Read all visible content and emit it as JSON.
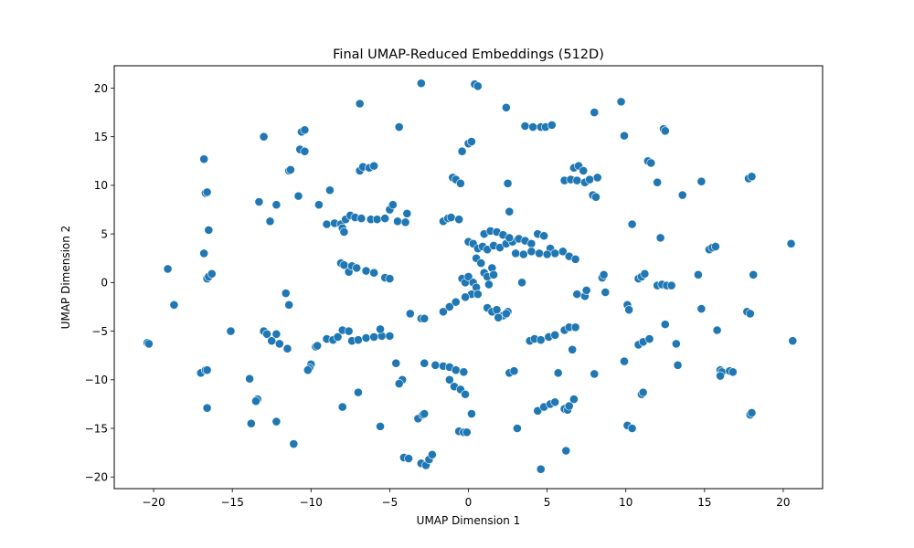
{
  "chart_data": {
    "type": "scatter",
    "title": "Final UMAP-Reduced Embeddings (512D)",
    "xlabel": "UMAP Dimension 1",
    "ylabel": "UMAP Dimension 2",
    "xlim": [
      -22.5,
      22.5
    ],
    "ylim": [
      -21.2,
      22.3
    ],
    "xticks": [
      -20,
      -15,
      -10,
      -5,
      0,
      5,
      10,
      15,
      20
    ],
    "yticks": [
      -20,
      -15,
      -10,
      -5,
      0,
      5,
      10,
      15,
      20
    ],
    "grid": false,
    "legend": "none",
    "marker_color": "#1f77b4",
    "marker_edge_color": "#ffffff",
    "series": [
      {
        "points": [
          [
            -20.4,
            -6.2
          ],
          [
            -20.3,
            -6.3
          ],
          [
            -19.1,
            1.4
          ],
          [
            -18.7,
            -2.3
          ],
          [
            -16.8,
            12.7
          ],
          [
            -16.7,
            9.2
          ],
          [
            -16.6,
            9.3
          ],
          [
            -16.5,
            5.4
          ],
          [
            -16.8,
            3.0
          ],
          [
            -16.6,
            0.4
          ],
          [
            -16.5,
            0.6
          ],
          [
            -16.3,
            0.9
          ],
          [
            -17.0,
            -9.3
          ],
          [
            -16.7,
            -9.0
          ],
          [
            -16.6,
            -9.0
          ],
          [
            -16.6,
            -12.9
          ],
          [
            -15.1,
            -5.0
          ],
          [
            -13.9,
            -9.9
          ],
          [
            -13.4,
            -12.0
          ],
          [
            -13.5,
            -12.2
          ],
          [
            -13.8,
            -14.5
          ],
          [
            -13.0,
            15.0
          ],
          [
            -13.3,
            8.3
          ],
          [
            -12.6,
            6.3
          ],
          [
            -12.2,
            8.0
          ],
          [
            -13.0,
            -5.0
          ],
          [
            -12.8,
            -5.3
          ],
          [
            -12.5,
            -6.0
          ],
          [
            -12.2,
            -5.3
          ],
          [
            -12.0,
            -6.3
          ],
          [
            -11.5,
            -6.8
          ],
          [
            -12.2,
            -14.3
          ],
          [
            -11.4,
            11.5
          ],
          [
            -11.3,
            11.6
          ],
          [
            -11.6,
            -1.1
          ],
          [
            -11.4,
            -2.3
          ],
          [
            -11.1,
            -16.6
          ],
          [
            -10.6,
            15.5
          ],
          [
            -10.4,
            15.7
          ],
          [
            -10.7,
            13.7
          ],
          [
            -10.4,
            13.5
          ],
          [
            -10.8,
            8.9
          ],
          [
            -10.0,
            -8.4
          ],
          [
            -10.1,
            -8.8
          ],
          [
            -10.2,
            -9.0
          ],
          [
            -9.7,
            -6.6
          ],
          [
            -9.6,
            -6.5
          ],
          [
            -9.5,
            8.0
          ],
          [
            -8.8,
            9.5
          ],
          [
            -9.0,
            6.0
          ],
          [
            -8.5,
            6.1
          ],
          [
            -8.1,
            6.0
          ],
          [
            -7.8,
            6.5
          ],
          [
            -7.5,
            6.9
          ],
          [
            -7.2,
            6.7
          ],
          [
            -6.8,
            6.6
          ],
          [
            -6.2,
            6.5
          ],
          [
            -5.8,
            6.5
          ],
          [
            -5.3,
            6.6
          ],
          [
            -5.0,
            7.5
          ],
          [
            -4.8,
            8.0
          ],
          [
            -4.5,
            6.3
          ],
          [
            -4.0,
            6.2
          ],
          [
            -3.9,
            7.1
          ],
          [
            -8.0,
            5.6
          ],
          [
            -7.9,
            5.2
          ],
          [
            -8.1,
            2.0
          ],
          [
            -7.9,
            1.8
          ],
          [
            -7.6,
            1.1
          ],
          [
            -7.4,
            1.7
          ],
          [
            -7.1,
            1.5
          ],
          [
            -6.5,
            1.2
          ],
          [
            -6.0,
            1.0
          ],
          [
            -5.3,
            0.5
          ],
          [
            -5.0,
            0.4
          ],
          [
            -9.0,
            -5.8
          ],
          [
            -8.6,
            -5.9
          ],
          [
            -8.3,
            -5.6
          ],
          [
            -8.0,
            -4.9
          ],
          [
            -7.6,
            -5.0
          ],
          [
            -7.4,
            -6.0
          ],
          [
            -7.0,
            -5.9
          ],
          [
            -6.5,
            -5.7
          ],
          [
            -6.0,
            -5.6
          ],
          [
            -5.5,
            -5.5
          ],
          [
            -5.0,
            -5.5
          ],
          [
            -5.6,
            -4.8
          ],
          [
            -8.0,
            -12.8
          ],
          [
            -7.0,
            -11.3
          ],
          [
            -6.9,
            11.5
          ],
          [
            -6.7,
            11.9
          ],
          [
            -6.3,
            11.8
          ],
          [
            -6.0,
            12.0
          ],
          [
            -6.9,
            18.4
          ],
          [
            -5.6,
            -14.8
          ],
          [
            -4.4,
            16.0
          ],
          [
            -4.6,
            -8.3
          ],
          [
            -4.2,
            -10.0
          ],
          [
            -4.4,
            -10.4
          ],
          [
            -3.7,
            -3.2
          ],
          [
            -3.0,
            -3.7
          ],
          [
            -2.8,
            -3.7
          ],
          [
            -4.1,
            -18.0
          ],
          [
            -3.8,
            -18.1
          ],
          [
            -3.2,
            -14.0
          ],
          [
            -2.9,
            -13.6
          ],
          [
            -2.8,
            -13.5
          ],
          [
            -3.0,
            -18.6
          ],
          [
            -2.7,
            -18.8
          ],
          [
            -2.5,
            -18.2
          ],
          [
            -2.3,
            -17.7
          ],
          [
            -3.0,
            20.5
          ],
          [
            -2.8,
            -8.3
          ],
          [
            -2.1,
            -8.5
          ],
          [
            -1.6,
            -8.6
          ],
          [
            -1.2,
            -8.7
          ],
          [
            -0.8,
            -9.0
          ],
          [
            -0.3,
            -9.2
          ],
          [
            -1.2,
            -10.0
          ],
          [
            -0.9,
            -10.7
          ],
          [
            -0.5,
            -11.0
          ],
          [
            -0.2,
            -11.5
          ],
          [
            -0.6,
            -15.3
          ],
          [
            -0.3,
            -15.4
          ],
          [
            -0.1,
            -15.4
          ],
          [
            0.2,
            -13.5
          ],
          [
            -1.6,
            -3.0
          ],
          [
            -1.2,
            -2.5
          ],
          [
            -0.8,
            -2.0
          ],
          [
            -1.6,
            6.3
          ],
          [
            -1.3,
            6.6
          ],
          [
            -1.1,
            6.7
          ],
          [
            -0.6,
            6.5
          ],
          [
            -1.0,
            10.8
          ],
          [
            -0.8,
            10.6
          ],
          [
            -0.5,
            10.2
          ],
          [
            -0.4,
            13.5
          ],
          [
            0.0,
            14.3
          ],
          [
            0.2,
            14.5
          ],
          [
            0.4,
            20.4
          ],
          [
            0.6,
            20.2
          ],
          [
            0.0,
            4.2
          ],
          [
            0.3,
            4.0
          ],
          [
            0.6,
            3.5
          ],
          [
            0.9,
            3.7
          ],
          [
            1.2,
            3.4
          ],
          [
            1.6,
            3.8
          ],
          [
            2.0,
            3.6
          ],
          [
            2.4,
            4.0
          ],
          [
            2.8,
            4.2
          ],
          [
            3.2,
            4.5
          ],
          [
            3.6,
            4.3
          ],
          [
            4.0,
            4.0
          ],
          [
            4.4,
            5.0
          ],
          [
            4.8,
            4.8
          ],
          [
            5.2,
            3.5
          ],
          [
            5.5,
            3.0
          ],
          [
            6.0,
            3.2
          ],
          [
            6.4,
            2.7
          ],
          [
            6.8,
            2.4
          ],
          [
            1.0,
            5.0
          ],
          [
            1.4,
            5.3
          ],
          [
            1.8,
            5.2
          ],
          [
            2.2,
            4.9
          ],
          [
            2.6,
            4.6
          ],
          [
            3.0,
            3.0
          ],
          [
            3.5,
            2.9
          ],
          [
            4.0,
            3.2
          ],
          [
            4.5,
            3.0
          ],
          [
            5.0,
            2.9
          ],
          [
            0.5,
            2.5
          ],
          [
            0.8,
            2.0
          ],
          [
            1.0,
            1.0
          ],
          [
            1.5,
            1.5
          ],
          [
            1.2,
            0.6
          ],
          [
            1.6,
            0.8
          ],
          [
            -0.4,
            0.4
          ],
          [
            -0.2,
            0.0
          ],
          [
            0.0,
            0.6
          ],
          [
            0.3,
            0.0
          ],
          [
            0.5,
            -0.5
          ],
          [
            0.2,
            -1.2
          ],
          [
            -0.2,
            -1.5
          ],
          [
            0.6,
            -1.2
          ],
          [
            1.3,
            -0.2
          ],
          [
            1.2,
            -2.6
          ],
          [
            1.5,
            -3.0
          ],
          [
            1.8,
            -2.8
          ],
          [
            2.2,
            -3.4
          ],
          [
            2.5,
            -3.0
          ],
          [
            1.9,
            -3.6
          ],
          [
            2.4,
            -3.2
          ],
          [
            2.5,
            10.2
          ],
          [
            2.6,
            7.3
          ],
          [
            2.4,
            18.0
          ],
          [
            3.6,
            16.1
          ],
          [
            4.1,
            16.0
          ],
          [
            4.6,
            16.0
          ],
          [
            4.9,
            16.0
          ],
          [
            5.3,
            16.2
          ],
          [
            3.4,
            0.0
          ],
          [
            2.6,
            -9.3
          ],
          [
            2.9,
            -9.1
          ],
          [
            3.1,
            -15.0
          ],
          [
            3.9,
            -6.0
          ],
          [
            4.2,
            -5.8
          ],
          [
            4.6,
            -5.9
          ],
          [
            5.1,
            -5.6
          ],
          [
            5.5,
            -5.4
          ],
          [
            6.1,
            -4.9
          ],
          [
            6.4,
            -4.6
          ],
          [
            6.8,
            -4.6
          ],
          [
            4.4,
            -13.2
          ],
          [
            4.8,
            -12.8
          ],
          [
            5.2,
            -12.5
          ],
          [
            5.5,
            -12.3
          ],
          [
            4.6,
            -19.2
          ],
          [
            5.7,
            -9.3
          ],
          [
            6.6,
            -6.9
          ],
          [
            6.7,
            -12.0
          ],
          [
            6.1,
            -13.0
          ],
          [
            6.3,
            -13.1
          ],
          [
            6.4,
            -12.7
          ],
          [
            6.2,
            -17.3
          ],
          [
            6.1,
            10.5
          ],
          [
            6.5,
            10.6
          ],
          [
            6.9,
            10.5
          ],
          [
            7.4,
            10.3
          ],
          [
            6.7,
            11.8
          ],
          [
            7.0,
            12.0
          ],
          [
            7.3,
            11.5
          ],
          [
            7.7,
            10.6
          ],
          [
            8.2,
            10.8
          ],
          [
            7.9,
            9.0
          ],
          [
            8.1,
            8.8
          ],
          [
            6.9,
            -1.2
          ],
          [
            7.4,
            -1.4
          ],
          [
            7.5,
            -0.8
          ],
          [
            8.0,
            -9.4
          ],
          [
            8.0,
            17.5
          ],
          [
            8.5,
            0.5
          ],
          [
            8.6,
            0.8
          ],
          [
            8.7,
            -1.0
          ],
          [
            9.7,
            18.6
          ],
          [
            9.9,
            15.1
          ],
          [
            9.9,
            -8.1
          ],
          [
            10.1,
            -2.3
          ],
          [
            10.2,
            -2.8
          ],
          [
            10.1,
            -14.7
          ],
          [
            10.4,
            -15.0
          ],
          [
            10.4,
            6.0
          ],
          [
            10.8,
            0.4
          ],
          [
            11.0,
            0.6
          ],
          [
            11.2,
            0.9
          ],
          [
            10.8,
            -6.4
          ],
          [
            11.1,
            -6.1
          ],
          [
            11.5,
            -5.8
          ],
          [
            11.0,
            -11.5
          ],
          [
            11.1,
            -11.3
          ],
          [
            11.4,
            12.5
          ],
          [
            11.6,
            12.3
          ],
          [
            12.0,
            10.3
          ],
          [
            12.2,
            4.6
          ],
          [
            12.0,
            -0.3
          ],
          [
            12.3,
            -0.2
          ],
          [
            12.6,
            -0.3
          ],
          [
            12.9,
            -0.3
          ],
          [
            12.4,
            15.8
          ],
          [
            12.5,
            15.6
          ],
          [
            12.5,
            -4.3
          ],
          [
            13.2,
            -6.3
          ],
          [
            13.3,
            -8.5
          ],
          [
            13.6,
            9.0
          ],
          [
            14.6,
            0.8
          ],
          [
            14.8,
            -2.7
          ],
          [
            14.8,
            10.4
          ],
          [
            15.3,
            3.4
          ],
          [
            15.5,
            3.6
          ],
          [
            15.7,
            3.7
          ],
          [
            15.8,
            -4.9
          ],
          [
            16.0,
            -9.0
          ],
          [
            16.1,
            -9.2
          ],
          [
            16.0,
            -9.6
          ],
          [
            16.6,
            -9.1
          ],
          [
            16.8,
            -9.2
          ],
          [
            17.7,
            -3.0
          ],
          [
            17.9,
            -3.2
          ],
          [
            17.8,
            10.7
          ],
          [
            18.0,
            10.9
          ],
          [
            17.9,
            -13.6
          ],
          [
            18.0,
            -13.4
          ],
          [
            18.1,
            0.8
          ],
          [
            20.5,
            4.0
          ],
          [
            20.6,
            -6.0
          ]
        ]
      }
    ]
  }
}
